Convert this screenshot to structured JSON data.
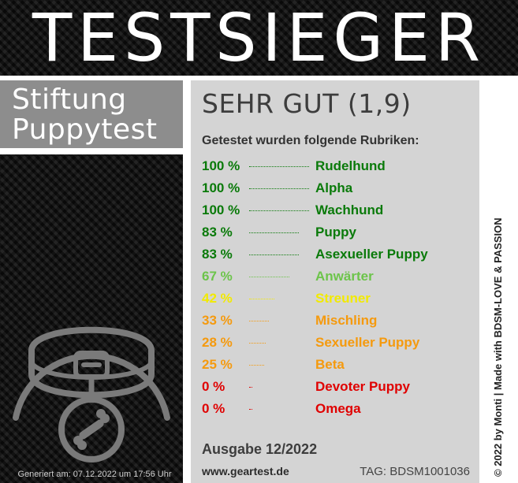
{
  "header": {
    "title": "TESTSIEGER"
  },
  "brand": {
    "line1": "Stiftung",
    "line2": "Puppytest"
  },
  "result": {
    "grade": "SEHR GUT (1,9)",
    "intro": "Getestet wurden folgende Rubriken:",
    "rows": [
      {
        "percent": "100 %",
        "category": "Rudelhund",
        "value": 100,
        "color": "#0a7a0a"
      },
      {
        "percent": "100 %",
        "category": "Alpha",
        "value": 100,
        "color": "#0a7a0a"
      },
      {
        "percent": "100 %",
        "category": "Wachhund",
        "value": 100,
        "color": "#0a7a0a"
      },
      {
        "percent": "83 %",
        "category": "Puppy",
        "value": 83,
        "color": "#0a7a0a"
      },
      {
        "percent": "83 %",
        "category": "Asexueller Puppy",
        "value": 83,
        "color": "#0a7a0a"
      },
      {
        "percent": "67 %",
        "category": "Anwärter",
        "value": 67,
        "color": "#6cc44a"
      },
      {
        "percent": "42 %",
        "category": "Streuner",
        "value": 42,
        "color": "#f2ea00"
      },
      {
        "percent": "33 %",
        "category": "Mischling",
        "value": 33,
        "color": "#f59a0e"
      },
      {
        "percent": "28 %",
        "category": "Sexueller Puppy",
        "value": 28,
        "color": "#f59a0e"
      },
      {
        "percent": "25 %",
        "category": "Beta",
        "value": 25,
        "color": "#f59a0e"
      },
      {
        "percent": "0 %",
        "category": "Devoter Puppy",
        "value": 0,
        "color": "#e00000"
      },
      {
        "percent": "0 %",
        "category": "Omega",
        "value": 0,
        "color": "#e00000"
      }
    ],
    "issue": "Ausgabe 12/2022",
    "website": "www.geartest.de",
    "tag": "TAG: BDSM1001036"
  },
  "footer": {
    "generated": "Generiert am: 07.12.2022 um 17:56 Uhr"
  },
  "side": {
    "copyright": "© 2022 by Monti | Made with BDSM-LOVE & PASSION"
  },
  "icons": {
    "emblem": "dog-collar-with-bone-tag-icon"
  }
}
